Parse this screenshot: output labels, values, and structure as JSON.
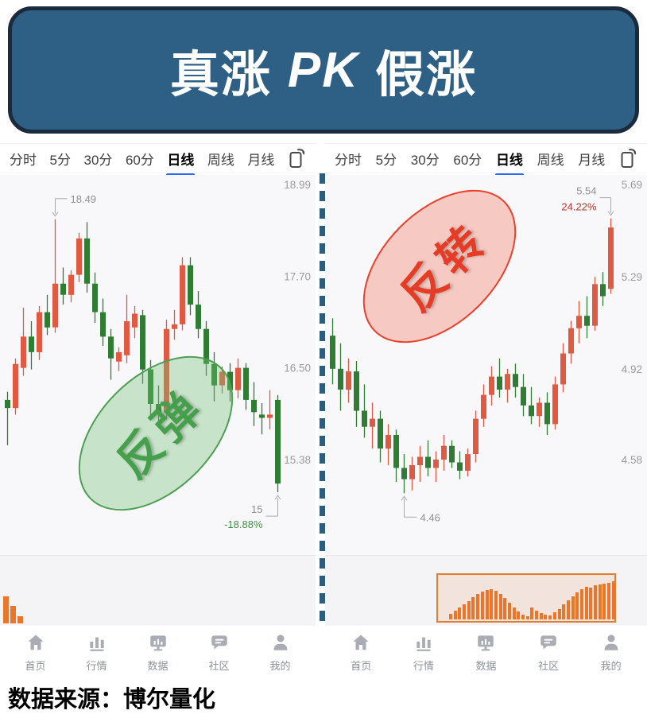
{
  "banner": {
    "prefix": "真涨",
    "pk": "PK",
    "suffix": "假涨"
  },
  "source_note": "数据来源：博尔量化",
  "tabs": {
    "items": [
      "分时",
      "5分",
      "30分",
      "60分",
      "日线",
      "周线",
      "月线"
    ],
    "active": "日线"
  },
  "nav": {
    "items": [
      {
        "label": "首页",
        "icon": "home-icon"
      },
      {
        "label": "行情",
        "icon": "market-chart-icon"
      },
      {
        "label": "数据",
        "icon": "data-monitor-icon"
      },
      {
        "label": "社区",
        "icon": "community-chat-icon"
      },
      {
        "label": "我的",
        "icon": "profile-icon"
      }
    ]
  },
  "colors": {
    "candle_up": "#e05a41",
    "candle_down": "#2e7d33",
    "volume": "#e8772a",
    "banner_bg": "#2e5f85",
    "banner_border": "#1b2a3c",
    "tab_accent": "#2f6cf6",
    "axis_text": "#9b9b9b",
    "callout_gray": "#8f8f8f",
    "pct_green": "#3f9142",
    "pct_red": "#b5352a",
    "divider_blue": "#2d5d7d",
    "rebound_green": "#45a04b",
    "reversal_red": "#e63b24"
  },
  "chart_data": [
    {
      "type": "candlestick",
      "panel": "left",
      "timeframe": "日线",
      "badge": {
        "text": "反弹",
        "color": "green"
      },
      "axis_labels": [
        "18.99",
        "17.70",
        "16.50",
        "15.38"
      ],
      "axis_prices": [
        18.99,
        17.7,
        16.5,
        15.38
      ],
      "annotations": {
        "high": {
          "candle": 6,
          "price": 18.49,
          "align": "start",
          "lines": [
            {
              "text": "18.49",
              "color": "#8f8f8f"
            }
          ]
        },
        "low": {
          "candle": 34,
          "price": 15.0,
          "align": "end",
          "lines": [
            {
              "text": "15",
              "color": "#8f8f8f"
            },
            {
              "text": "-18.88%",
              "color": "#3f9142"
            }
          ]
        }
      },
      "candles": [
        [
          16.1,
          16.2,
          15.55,
          16.0
        ],
        [
          16.0,
          16.62,
          15.92,
          16.55
        ],
        [
          16.5,
          17.28,
          16.4,
          16.9
        ],
        [
          16.9,
          17.1,
          16.48,
          16.7
        ],
        [
          16.7,
          17.3,
          16.6,
          17.22
        ],
        [
          17.22,
          17.45,
          16.92,
          17.02
        ],
        [
          17.02,
          18.49,
          16.95,
          17.6
        ],
        [
          17.6,
          17.82,
          17.32,
          17.45
        ],
        [
          17.45,
          17.78,
          17.35,
          17.72
        ],
        [
          17.72,
          18.3,
          17.62,
          18.22
        ],
        [
          18.22,
          18.45,
          17.48,
          17.6
        ],
        [
          17.6,
          17.75,
          17.08,
          17.22
        ],
        [
          17.22,
          17.4,
          16.78,
          16.9
        ],
        [
          16.9,
          17.0,
          16.35,
          16.62
        ],
        [
          16.58,
          16.76,
          16.46,
          16.7
        ],
        [
          16.66,
          17.45,
          16.56,
          17.1
        ],
        [
          17.02,
          17.3,
          16.88,
          17.2
        ],
        [
          17.18,
          17.25,
          16.3,
          16.48
        ],
        [
          16.48,
          16.6,
          15.9,
          16.05
        ],
        [
          16.05,
          16.28,
          15.76,
          15.95
        ],
        [
          15.95,
          17.12,
          15.86,
          17.0
        ],
        [
          17.0,
          17.25,
          16.86,
          17.06
        ],
        [
          17.06,
          17.96,
          16.98,
          17.85
        ],
        [
          17.85,
          17.96,
          17.18,
          17.32
        ],
        [
          17.32,
          17.5,
          16.88,
          17.0
        ],
        [
          17.0,
          17.1,
          16.4,
          16.55
        ],
        [
          16.55,
          16.7,
          16.08,
          16.28
        ],
        [
          16.28,
          16.52,
          16.18,
          16.45
        ],
        [
          16.45,
          16.56,
          16.08,
          16.22
        ],
        [
          16.22,
          16.62,
          16.12,
          16.5
        ],
        [
          16.5,
          16.56,
          15.98,
          16.1
        ],
        [
          16.1,
          16.32,
          15.78,
          15.95
        ],
        [
          15.92,
          16.06,
          15.68,
          15.88
        ],
        [
          15.88,
          16.22,
          15.74,
          15.92
        ],
        [
          16.1,
          16.16,
          15.0,
          15.1
        ]
      ],
      "volume_bars": [
        34,
        22,
        9
      ],
      "volume_box": false
    },
    {
      "type": "candlestick",
      "panel": "right",
      "timeframe": "日线",
      "badge": {
        "text": "反转",
        "color": "red"
      },
      "axis_labels": [
        "5.69",
        "5.29",
        "4.92",
        "4.58"
      ],
      "axis_prices": [
        5.69,
        5.29,
        4.92,
        4.58
      ],
      "annotations": {
        "high": {
          "candle": 35,
          "price": 5.54,
          "align": "end",
          "lines": [
            {
              "text": "5.54",
              "color": "#8f8f8f"
            },
            {
              "text": "24.22%",
              "color": "#b5352a"
            }
          ]
        },
        "low": {
          "candle": 9,
          "price": 4.46,
          "align": "start",
          "lines": [
            {
              "text": "4.46",
              "color": "#8f8f8f"
            }
          ]
        }
      },
      "candles": [
        [
          5.05,
          5.12,
          4.86,
          4.92
        ],
        [
          4.92,
          5.02,
          4.76,
          4.84
        ],
        [
          4.84,
          4.96,
          4.79,
          4.91
        ],
        [
          4.91,
          4.95,
          4.7,
          4.76
        ],
        [
          4.76,
          4.86,
          4.66,
          4.7
        ],
        [
          4.7,
          4.79,
          4.62,
          4.73
        ],
        [
          4.73,
          4.76,
          4.57,
          4.62
        ],
        [
          4.62,
          4.71,
          4.56,
          4.67
        ],
        [
          4.67,
          4.69,
          4.5,
          4.55
        ],
        [
          4.55,
          4.6,
          4.46,
          4.51
        ],
        [
          4.51,
          4.59,
          4.47,
          4.56
        ],
        [
          4.56,
          4.63,
          4.5,
          4.59
        ],
        [
          4.59,
          4.65,
          4.52,
          4.55
        ],
        [
          4.55,
          4.61,
          4.5,
          4.58
        ],
        [
          4.58,
          4.67,
          4.54,
          4.63
        ],
        [
          4.63,
          4.65,
          4.55,
          4.57
        ],
        [
          4.57,
          4.61,
          4.51,
          4.54
        ],
        [
          4.54,
          4.62,
          4.52,
          4.6
        ],
        [
          4.6,
          4.76,
          4.57,
          4.73
        ],
        [
          4.73,
          4.86,
          4.7,
          4.82
        ],
        [
          4.82,
          4.93,
          4.78,
          4.89
        ],
        [
          4.89,
          4.96,
          4.81,
          4.84
        ],
        [
          4.84,
          4.92,
          4.79,
          4.9
        ],
        [
          4.9,
          4.94,
          4.81,
          4.85
        ],
        [
          4.85,
          4.9,
          4.74,
          4.78
        ],
        [
          4.78,
          4.85,
          4.71,
          4.74
        ],
        [
          4.74,
          4.81,
          4.7,
          4.79
        ],
        [
          4.79,
          4.83,
          4.67,
          4.71
        ],
        [
          4.71,
          4.89,
          4.69,
          4.86
        ],
        [
          4.86,
          5.02,
          4.83,
          4.98
        ],
        [
          4.98,
          5.11,
          4.94,
          5.08
        ],
        [
          5.08,
          5.19,
          5.02,
          5.13
        ],
        [
          5.13,
          5.21,
          5.04,
          5.09
        ],
        [
          5.09,
          5.29,
          5.07,
          5.26
        ],
        [
          5.26,
          5.31,
          5.17,
          5.21
        ],
        [
          5.24,
          5.54,
          5.22,
          5.5
        ]
      ],
      "volume_bars": [
        7,
        11,
        15,
        19,
        23,
        28,
        32,
        35,
        37,
        38,
        36,
        32,
        27,
        21,
        15,
        10,
        6,
        4,
        15,
        11,
        8,
        6,
        5,
        9,
        13,
        19,
        24,
        29,
        34,
        38,
        41,
        40,
        43,
        44,
        45,
        46,
        48
      ],
      "volume_box": true
    }
  ]
}
